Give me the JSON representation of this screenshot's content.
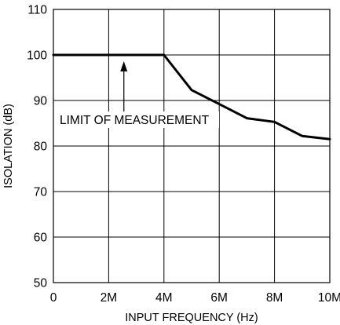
{
  "chart_data": {
    "type": "line",
    "xlabel": "INPUT FREQUENCY (Hz)",
    "ylabel": "ISOLATION (dB)",
    "xlim": [
      0,
      10
    ],
    "ylim": [
      50,
      110
    ],
    "xticks": [
      0,
      2,
      4,
      6,
      8,
      10
    ],
    "xtick_labels": [
      "0",
      "2M",
      "4M",
      "6M",
      "8M",
      "10M"
    ],
    "yticks": [
      50,
      60,
      70,
      80,
      90,
      100,
      110
    ],
    "ytick_labels": [
      "50",
      "60",
      "70",
      "80",
      "90",
      "100",
      "110"
    ],
    "grid": true,
    "series": [
      {
        "x": [
          0,
          4,
          5,
          6,
          7,
          8,
          9,
          10
        ],
        "y": [
          100,
          100,
          92.3,
          89.2,
          86.1,
          85.3,
          82.2,
          81.5
        ]
      }
    ],
    "annotations": [
      {
        "text": "LIMIT OF MEASUREMENT",
        "x": 2.55,
        "y": 100
      }
    ],
    "colors": {
      "line": "#000000",
      "grid": "#000000",
      "background": "#ffffff"
    }
  }
}
